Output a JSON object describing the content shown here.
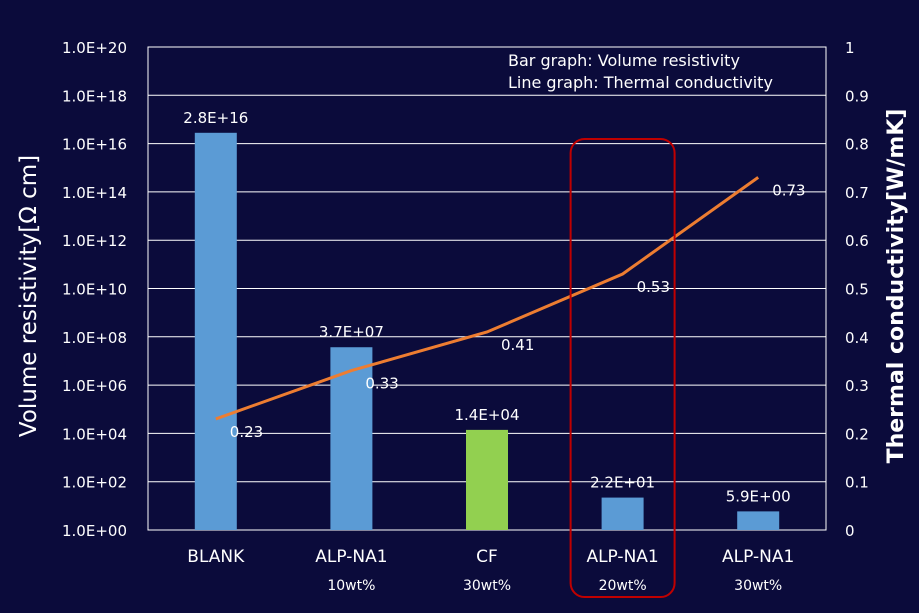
{
  "chart_data": {
    "type": "bar",
    "legend_lines": [
      "Bar graph: Volume resistivity",
      "Line graph: Thermal conductivity"
    ],
    "ylabel_left": "Volume resistivity[Ω cm]",
    "ylabel_right": "Thermal conductivity[W/mK]",
    "left_axis": {
      "scale": "log",
      "ylim": [
        1,
        1e+20
      ],
      "ticks": [
        "1.0E+00",
        "1.0E+02",
        "1.0E+04",
        "1.0E+06",
        "1.0E+08",
        "1.0E+10",
        "1.0E+12",
        "1.0E+14",
        "1.0E+16",
        "1.0E+18",
        "1.0E+20"
      ]
    },
    "right_axis": {
      "scale": "linear",
      "ylim": [
        0,
        1
      ],
      "ticks": [
        "0",
        "0.1",
        "0.2",
        "0.3",
        "0.4",
        "0.5",
        "0.6",
        "0.7",
        "0.8",
        "0.9",
        "1"
      ]
    },
    "grid": true,
    "categories": [
      {
        "name": "BLANK",
        "sub": ""
      },
      {
        "name": "ALP-NA1",
        "sub": "10wt%"
      },
      {
        "name": "CF",
        "sub": "30wt%"
      },
      {
        "name": "ALP-NA1",
        "sub": "20wt%"
      },
      {
        "name": "ALP-NA1",
        "sub": "30wt%"
      }
    ],
    "series": [
      {
        "kind": "bar",
        "axis": "left",
        "values": [
          2.8e+16,
          37000000.0,
          14000.0,
          22,
          5.9
        ],
        "labels": [
          "2.8E+16",
          "3.7E+07",
          "1.4E+04",
          "2.2E+01",
          "5.9E+00"
        ],
        "colors": [
          "#5b9bd5",
          "#5b9bd5",
          "#92d050",
          "#5b9bd5",
          "#5b9bd5"
        ]
      },
      {
        "kind": "line",
        "axis": "right",
        "values": [
          0.23,
          0.33,
          0.41,
          0.53,
          0.73
        ],
        "labels": [
          "0.23",
          "0.33",
          "0.41",
          "0.53",
          "0.73"
        ],
        "color": "#ed7d31"
      }
    ],
    "highlight": {
      "category_index": 3,
      "color": "#c00000"
    }
  }
}
